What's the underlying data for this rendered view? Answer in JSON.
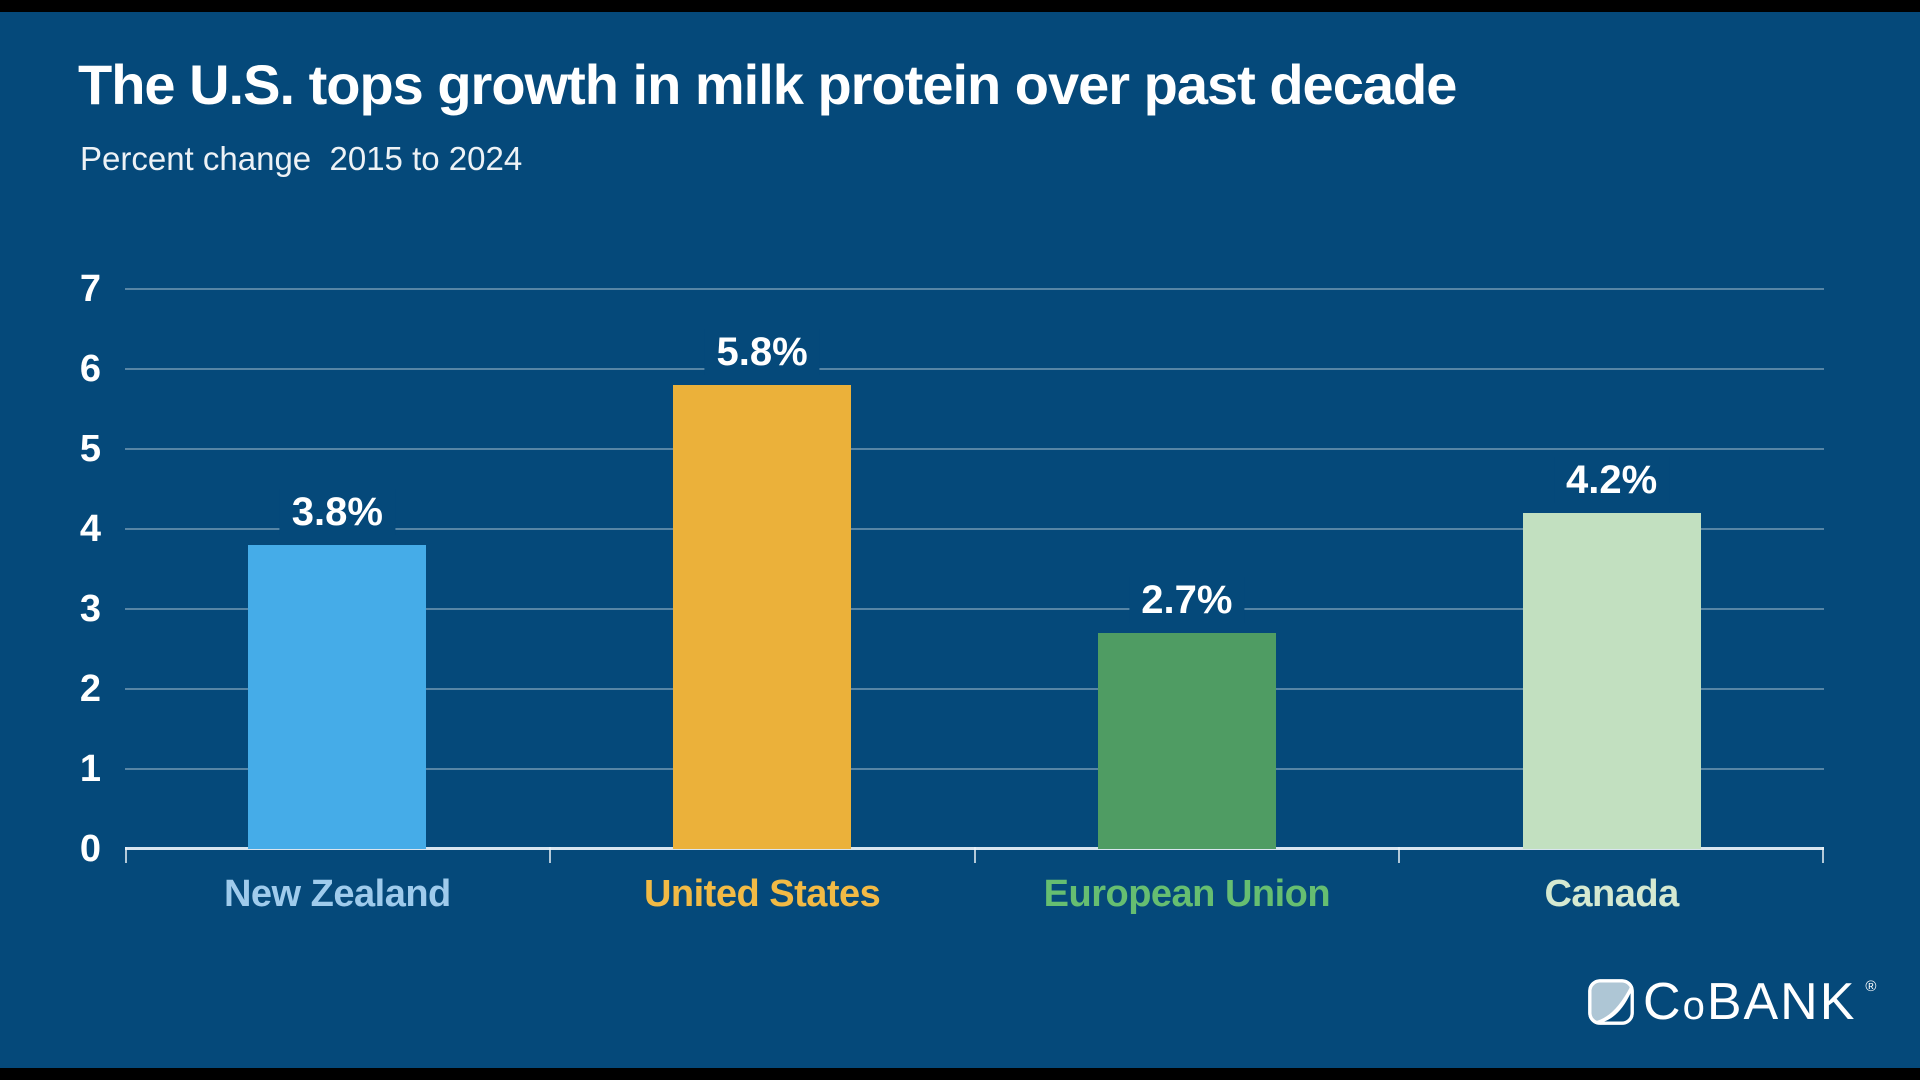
{
  "page": {
    "background_color": "#05497A",
    "letterbox_color": "#000000"
  },
  "chart_data": {
    "type": "bar",
    "title": "The U.S. tops growth in milk protein over past decade",
    "subtitle": "Percent change  2015 to 2024",
    "categories": [
      "New Zealand",
      "United States",
      "European Union",
      "Canada"
    ],
    "values": [
      3.8,
      5.8,
      2.7,
      4.2
    ],
    "value_labels": [
      "3.8%",
      "5.8%",
      "2.7%",
      "4.2%"
    ],
    "bar_colors": [
      "#45ACE8",
      "#EBB13A",
      "#4F9C63",
      "#C2E0C0"
    ],
    "category_label_colors": [
      "#9FCBEC",
      "#F2BA45",
      "#66BE71",
      "#D5E9D1"
    ],
    "xlabel": "",
    "ylabel": "",
    "ylim": [
      0,
      7
    ],
    "yticks": [
      7,
      6,
      5,
      4,
      3,
      2,
      1,
      0
    ],
    "grid": true,
    "legend": false,
    "gridline_color": "rgba(255,255,255,0.33)"
  },
  "footer": {
    "logo_c": "C",
    "logo_o": "o",
    "logo_bank": "BANK",
    "logo_reg": "®"
  }
}
